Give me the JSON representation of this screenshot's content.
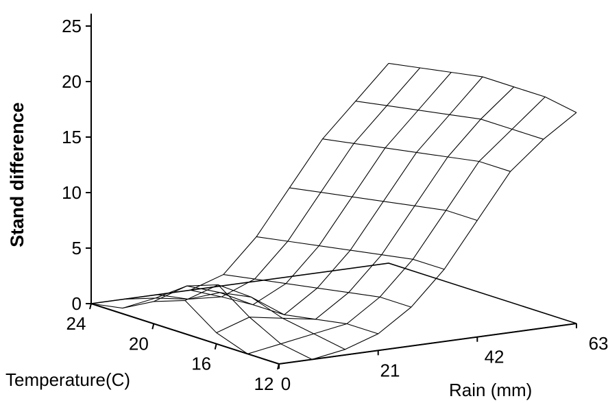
{
  "chart_data": {
    "type": "surface",
    "zlabel": "Stand difference",
    "xlabel": "Rain (mm)",
    "ylabel": "Temperature(C)",
    "z_ticks": [
      "0",
      "5",
      "10",
      "15",
      "20",
      "25"
    ],
    "x_ticks": [
      "0",
      "21",
      "42",
      "63"
    ],
    "y_ticks": [
      "24",
      "20",
      "16",
      "12"
    ],
    "zlim": [
      0,
      25
    ],
    "xlim": [
      0,
      63
    ],
    "ylim": [
      12,
      24
    ],
    "rain": [
      0,
      7,
      14,
      21,
      28,
      35,
      42,
      49,
      56,
      63
    ],
    "temperature": [
      12,
      14,
      16,
      18,
      20,
      22,
      24
    ],
    "z": [
      [
        0,
        0,
        0.5,
        1.5,
        3.5,
        6.5,
        10.5,
        14.5,
        17,
        19
      ],
      [
        0,
        0.5,
        1,
        1.5,
        3.5,
        6.5,
        10.5,
        14.5,
        17,
        19.5
      ],
      [
        1,
        2,
        1.5,
        1,
        3,
        6,
        10,
        14,
        17,
        19.5
      ],
      [
        3,
        4,
        2.5,
        0.5,
        2.5,
        5.5,
        9.5,
        13.5,
        16.5,
        19.5
      ],
      [
        2,
        3,
        2,
        0.5,
        2,
        5,
        9,
        13,
        16,
        19
      ],
      [
        0.5,
        1,
        0.5,
        0.3,
        1.5,
        4.5,
        8.5,
        12.5,
        15.5,
        18.5
      ],
      [
        0,
        0,
        0,
        0,
        1,
        4,
        8,
        12,
        15,
        18
      ]
    ],
    "grid": false,
    "legend": "none"
  }
}
